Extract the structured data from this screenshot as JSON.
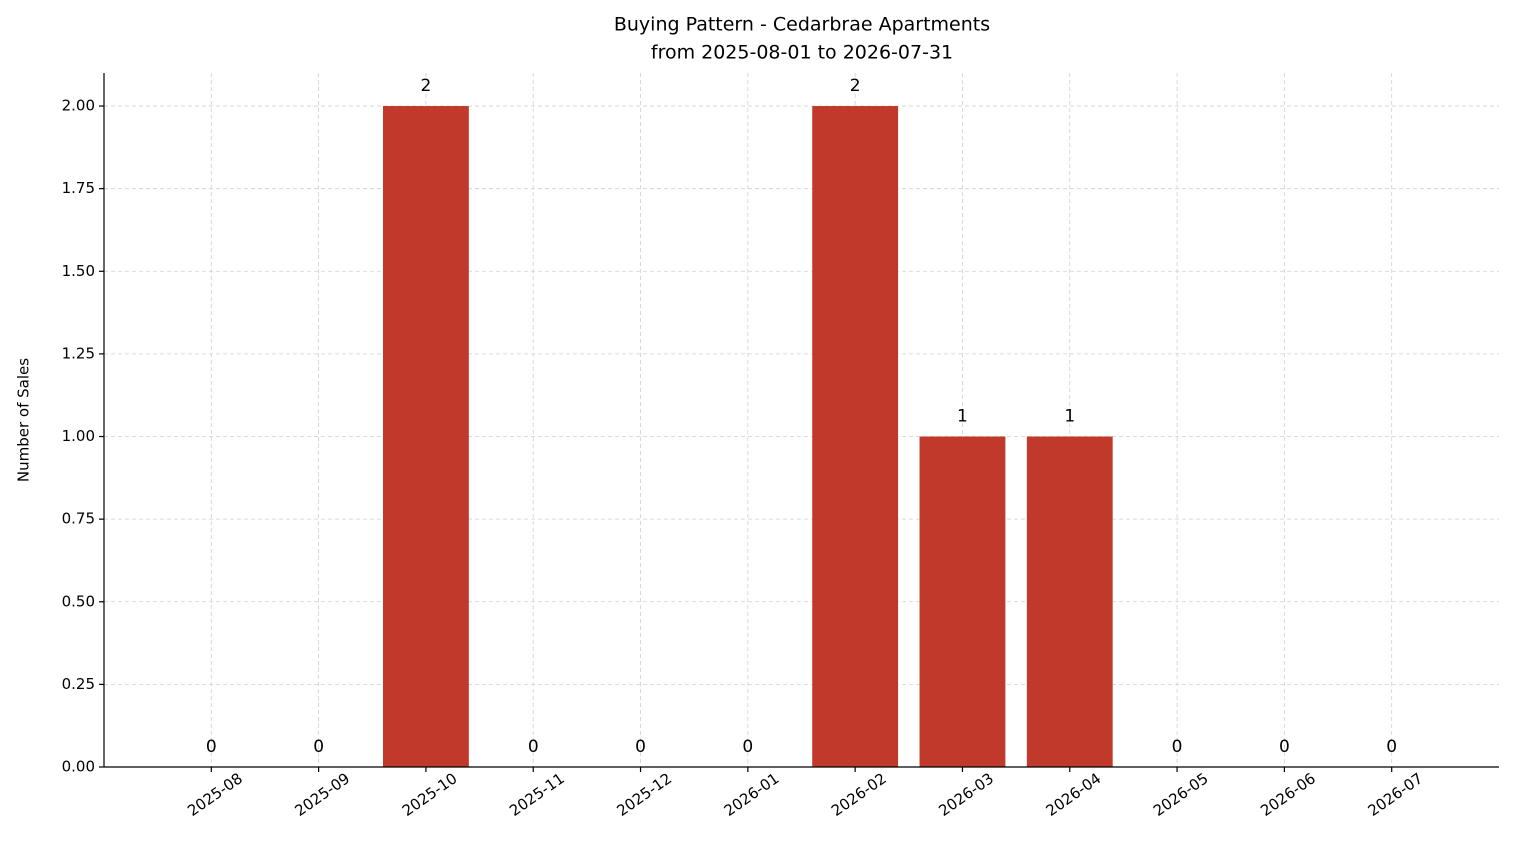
{
  "chart_data": {
    "type": "bar",
    "title": "Buying Pattern - Cedarbrae Apartments",
    "subtitle": "from 2025-08-01 to 2026-07-31",
    "y_label": "Number of Sales",
    "categories": [
      "2025-08",
      "2025-09",
      "2025-10",
      "2025-11",
      "2025-12",
      "2026-01",
      "2026-02",
      "2026-03",
      "2026-04",
      "2026-05",
      "2026-06",
      "2026-07"
    ],
    "values": [
      0,
      0,
      2,
      0,
      0,
      0,
      2,
      1,
      1,
      0,
      0,
      0
    ],
    "color": "#c0392b",
    "ylim": [
      0,
      2.1
    ],
    "yticks": [
      {
        "value": 0,
        "label": "0.00"
      },
      0.25,
      {
        "value": 0.5,
        "label": "0.50"
      },
      0.75,
      {
        "value": 1,
        "label": "1.00"
      },
      1.25,
      {
        "value": 1.5,
        "label": "1.50"
      },
      1.75,
      {
        "value": 2,
        "label": "2.00"
      }
    ],
    "grid": true
  }
}
